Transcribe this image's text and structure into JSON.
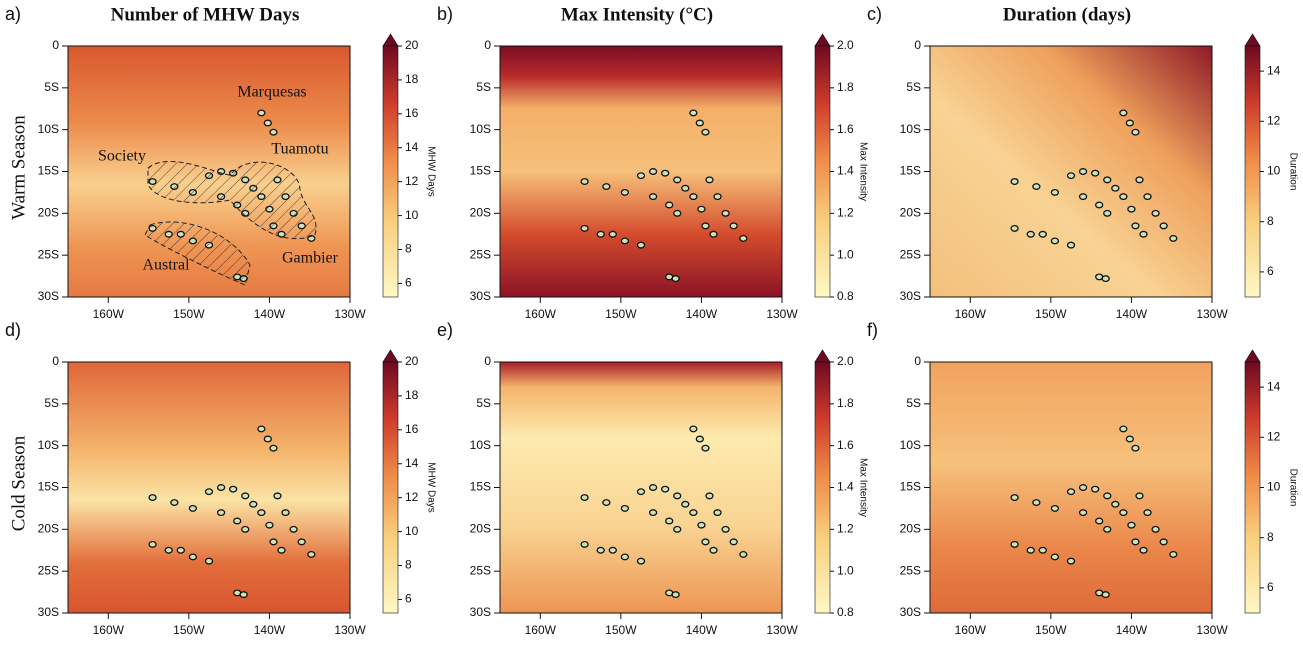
{
  "column_titles": [
    "Number of MHW Days",
    "Max Intensity (°C)",
    "Duration (days)"
  ],
  "row_labels": [
    "Warm Season",
    "Cold Season"
  ],
  "panels": [
    {
      "letter": "a)"
    },
    {
      "letter": "b)"
    },
    {
      "letter": "c)"
    },
    {
      "letter": "d)"
    },
    {
      "letter": "e)"
    },
    {
      "letter": "f)"
    }
  ],
  "lon_labels": [
    "160W",
    "150W",
    "140W",
    "130W"
  ],
  "lat_labels": [
    "0",
    "5S",
    "10S",
    "15S",
    "20S",
    "25S",
    "30S"
  ],
  "region_labels": [
    "Marquesas",
    "Society",
    "Tuamotu",
    "Austral",
    "Gambier"
  ],
  "colorbars": [
    {
      "label": "MHW Days",
      "lim": [
        5.2,
        20
      ],
      "ticks": [
        6,
        8,
        10,
        12,
        14,
        16,
        18,
        20
      ]
    },
    {
      "label": "Max Intensity",
      "lim": [
        0.8,
        2.0
      ],
      "ticks": [
        0.8,
        {
          "value": 1.0,
          "label": "1.0"
        },
        1.2,
        1.4,
        1.6,
        1.8,
        {
          "value": 2.0,
          "label": "2.0"
        }
      ]
    },
    {
      "label": "Duration",
      "lim": [
        5,
        15
      ],
      "ticks": [
        6,
        8,
        10,
        12,
        14
      ]
    }
  ]
}
